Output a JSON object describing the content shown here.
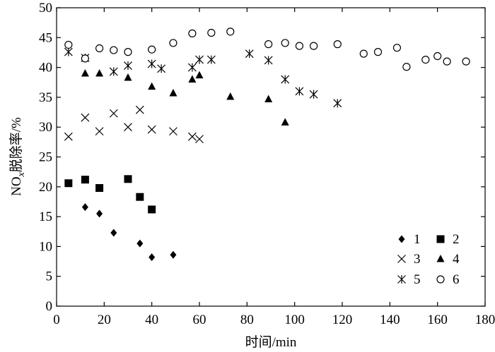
{
  "chart_data": {
    "type": "scatter",
    "xlabel": "时间/min",
    "ylabel_parts": [
      "NO",
      "x",
      "脱除率/%"
    ],
    "xlim": [
      0,
      180
    ],
    "ylim": [
      0,
      50
    ],
    "xticks": [
      "0",
      "20",
      "40",
      "60",
      "80",
      "100",
      "120",
      "140",
      "160",
      "180"
    ],
    "yticks": [
      "0",
      "5",
      "10",
      "15",
      "20",
      "25",
      "30",
      "35",
      "40",
      "45",
      "50"
    ],
    "grid": false,
    "legend_position": "bottom-right",
    "series": [
      {
        "name": "1",
        "marker": "diamond-filled",
        "x": [
          12,
          18,
          24,
          35,
          40,
          49
        ],
        "y": [
          16.6,
          15.5,
          12.3,
          10.5,
          8.2,
          8.6
        ]
      },
      {
        "name": "2",
        "marker": "square-filled",
        "x": [
          5,
          12,
          18,
          30,
          35,
          40
        ],
        "y": [
          20.6,
          21.2,
          19.8,
          21.3,
          18.3,
          16.2
        ]
      },
      {
        "name": "3",
        "marker": "x",
        "x": [
          5,
          12,
          18,
          24,
          30,
          35,
          40,
          49,
          57,
          60
        ],
        "y": [
          28.4,
          31.6,
          29.3,
          32.3,
          30.0,
          32.9,
          29.6,
          29.3,
          28.4,
          28.0
        ]
      },
      {
        "name": "4",
        "marker": "triangle-filled",
        "x": [
          12,
          18,
          30,
          40,
          49,
          57,
          60,
          73,
          89,
          96
        ],
        "y": [
          39.0,
          39.0,
          38.3,
          36.8,
          35.7,
          38.0,
          38.7,
          35.1,
          34.7,
          30.8
        ]
      },
      {
        "name": "5",
        "marker": "asterisk",
        "x": [
          5,
          12,
          24,
          30,
          40,
          44,
          57,
          60,
          65,
          81,
          89,
          96,
          102,
          108,
          118
        ],
        "y": [
          42.6,
          41.6,
          39.3,
          40.3,
          40.6,
          39.8,
          40.0,
          41.3,
          41.3,
          42.3,
          41.2,
          38.0,
          36.0,
          35.5,
          34.0
        ]
      },
      {
        "name": "6",
        "marker": "circle-open",
        "x": [
          5,
          12,
          18,
          24,
          30,
          40,
          49,
          57,
          65,
          73,
          89,
          96,
          102,
          108,
          118,
          129,
          135,
          143,
          147,
          155,
          160,
          164,
          172
        ],
        "y": [
          43.8,
          41.5,
          43.2,
          42.9,
          42.6,
          43.0,
          44.1,
          45.7,
          45.8,
          46.0,
          43.9,
          44.1,
          43.6,
          43.6,
          43.9,
          42.3,
          42.6,
          43.3,
          40.1,
          41.3,
          41.9,
          41.0,
          41.0
        ]
      }
    ]
  }
}
